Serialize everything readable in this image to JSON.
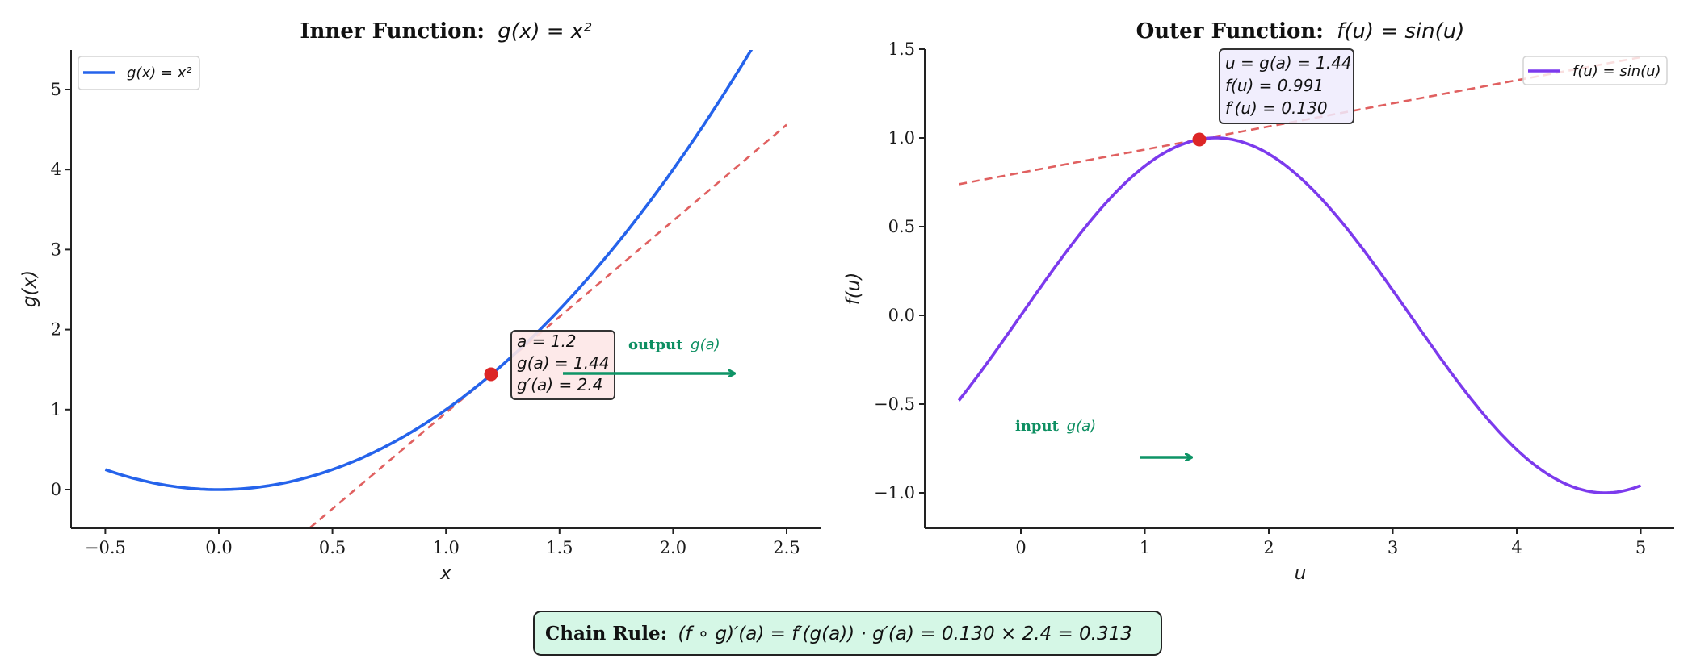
{
  "colors": {
    "inner_curve": "#2563eb",
    "outer_curve": "#7c3aed",
    "tangent": "#e06060",
    "point": "#dc2626",
    "arrow": "#0e9466",
    "inner_box_bg": "#fde7e7",
    "outer_box_bg": "#eeebfd",
    "chain_box_bg": "#d5f7e6",
    "axis": "#222222"
  },
  "left": {
    "title_bold": "Inner Function:",
    "title_math": "g(x) = x²",
    "xlabel": "x",
    "ylabel": "g(x)",
    "legend": "g(x) = x²",
    "xticks": [
      "−0.5",
      "0.0",
      "0.5",
      "1.0",
      "1.5",
      "2.0",
      "2.5"
    ],
    "yticks": [
      "0",
      "1",
      "2",
      "3",
      "4",
      "5"
    ],
    "annotation": [
      "a = 1.2",
      "g(a) = 1.44",
      "g′(a) = 2.4"
    ],
    "arrow_label_bold": "output",
    "arrow_label_math": "g(a)"
  },
  "right": {
    "title_bold": "Outer Function:",
    "title_math": "f(u) = sin(u)",
    "xlabel": "u",
    "ylabel": "f(u)",
    "legend": "f(u) = sin(u)",
    "xticks": [
      "0",
      "1",
      "2",
      "3",
      "4",
      "5"
    ],
    "yticks": [
      "−1.0",
      "−0.5",
      "0.0",
      "0.5",
      "1.0",
      "1.5"
    ],
    "annotation": [
      "u = g(a) = 1.44",
      "f(u) = 0.991",
      "f′(u) = 0.130"
    ],
    "arrow_label_bold": "input",
    "arrow_label_math": "g(a)"
  },
  "footer": {
    "bold": "Chain Rule:",
    "math": "(f ∘ g)′(a) = f′(g(a)) · g′(a) = 0.130 × 2.4 = 0.313"
  },
  "chart_data": [
    {
      "type": "line",
      "title": "Inner Function: g(x) = x^2",
      "xlabel": "x",
      "ylabel": "g(x)",
      "xlim": [
        -0.65,
        2.65
      ],
      "ylim": [
        -0.5,
        5.5
      ],
      "xticks": [
        -0.5,
        0.0,
        0.5,
        1.0,
        1.5,
        2.0,
        2.5
      ],
      "yticks": [
        0,
        1,
        2,
        3,
        4,
        5
      ],
      "grid": false,
      "legend_position": "upper left",
      "series": [
        {
          "name": "g(x) = x^2",
          "style": "solid",
          "color": "#2563eb",
          "x": [
            -0.5,
            0.0,
            0.5,
            1.0,
            1.2,
            1.5,
            2.0,
            2.33
          ],
          "y": [
            0.25,
            0.0,
            0.25,
            1.0,
            1.44,
            2.25,
            4.0,
            5.43
          ]
        },
        {
          "name": "tangent at a=1.2",
          "style": "dashed",
          "color": "#e06060",
          "x": [
            0.4,
            2.5
          ],
          "y": [
            -0.48,
            4.56
          ],
          "slope": 2.4
        }
      ],
      "points": [
        {
          "x": 1.2,
          "y": 1.44,
          "label": "a = 1.2, g(a) = 1.44, g'(a) = 2.4"
        }
      ],
      "annotations": [
        "output g(a)"
      ]
    },
    {
      "type": "line",
      "title": "Outer Function: f(u) = sin(u)",
      "xlabel": "u",
      "ylabel": "f(u)",
      "xlim": [
        -0.77,
        5.27
      ],
      "ylim": [
        -1.2,
        1.5
      ],
      "xticks": [
        0,
        1,
        2,
        3,
        4,
        5
      ],
      "yticks": [
        -1.0,
        -0.5,
        0.0,
        0.5,
        1.0,
        1.5
      ],
      "grid": false,
      "legend_position": "upper right",
      "series": [
        {
          "name": "f(u) = sin(u)",
          "style": "solid",
          "color": "#7c3aed",
          "x": [
            -0.5,
            0.0,
            1.0,
            1.44,
            1.571,
            2.0,
            3.0,
            4.0,
            4.712,
            5.0
          ],
          "y": [
            -0.479,
            0.0,
            0.841,
            0.991,
            1.0,
            0.909,
            0.141,
            -0.757,
            -1.0,
            -0.959
          ]
        },
        {
          "name": "tangent at u=1.44",
          "style": "dashed",
          "color": "#e06060",
          "x": [
            -0.5,
            5.0
          ],
          "y": [
            0.739,
            1.455
          ],
          "slope": 0.13
        }
      ],
      "points": [
        {
          "x": 1.44,
          "y": 0.991,
          "label": "u = g(a) = 1.44, f(u) = 0.991, f'(u) = 0.130"
        }
      ],
      "annotations": [
        "input g(a)"
      ]
    }
  ]
}
